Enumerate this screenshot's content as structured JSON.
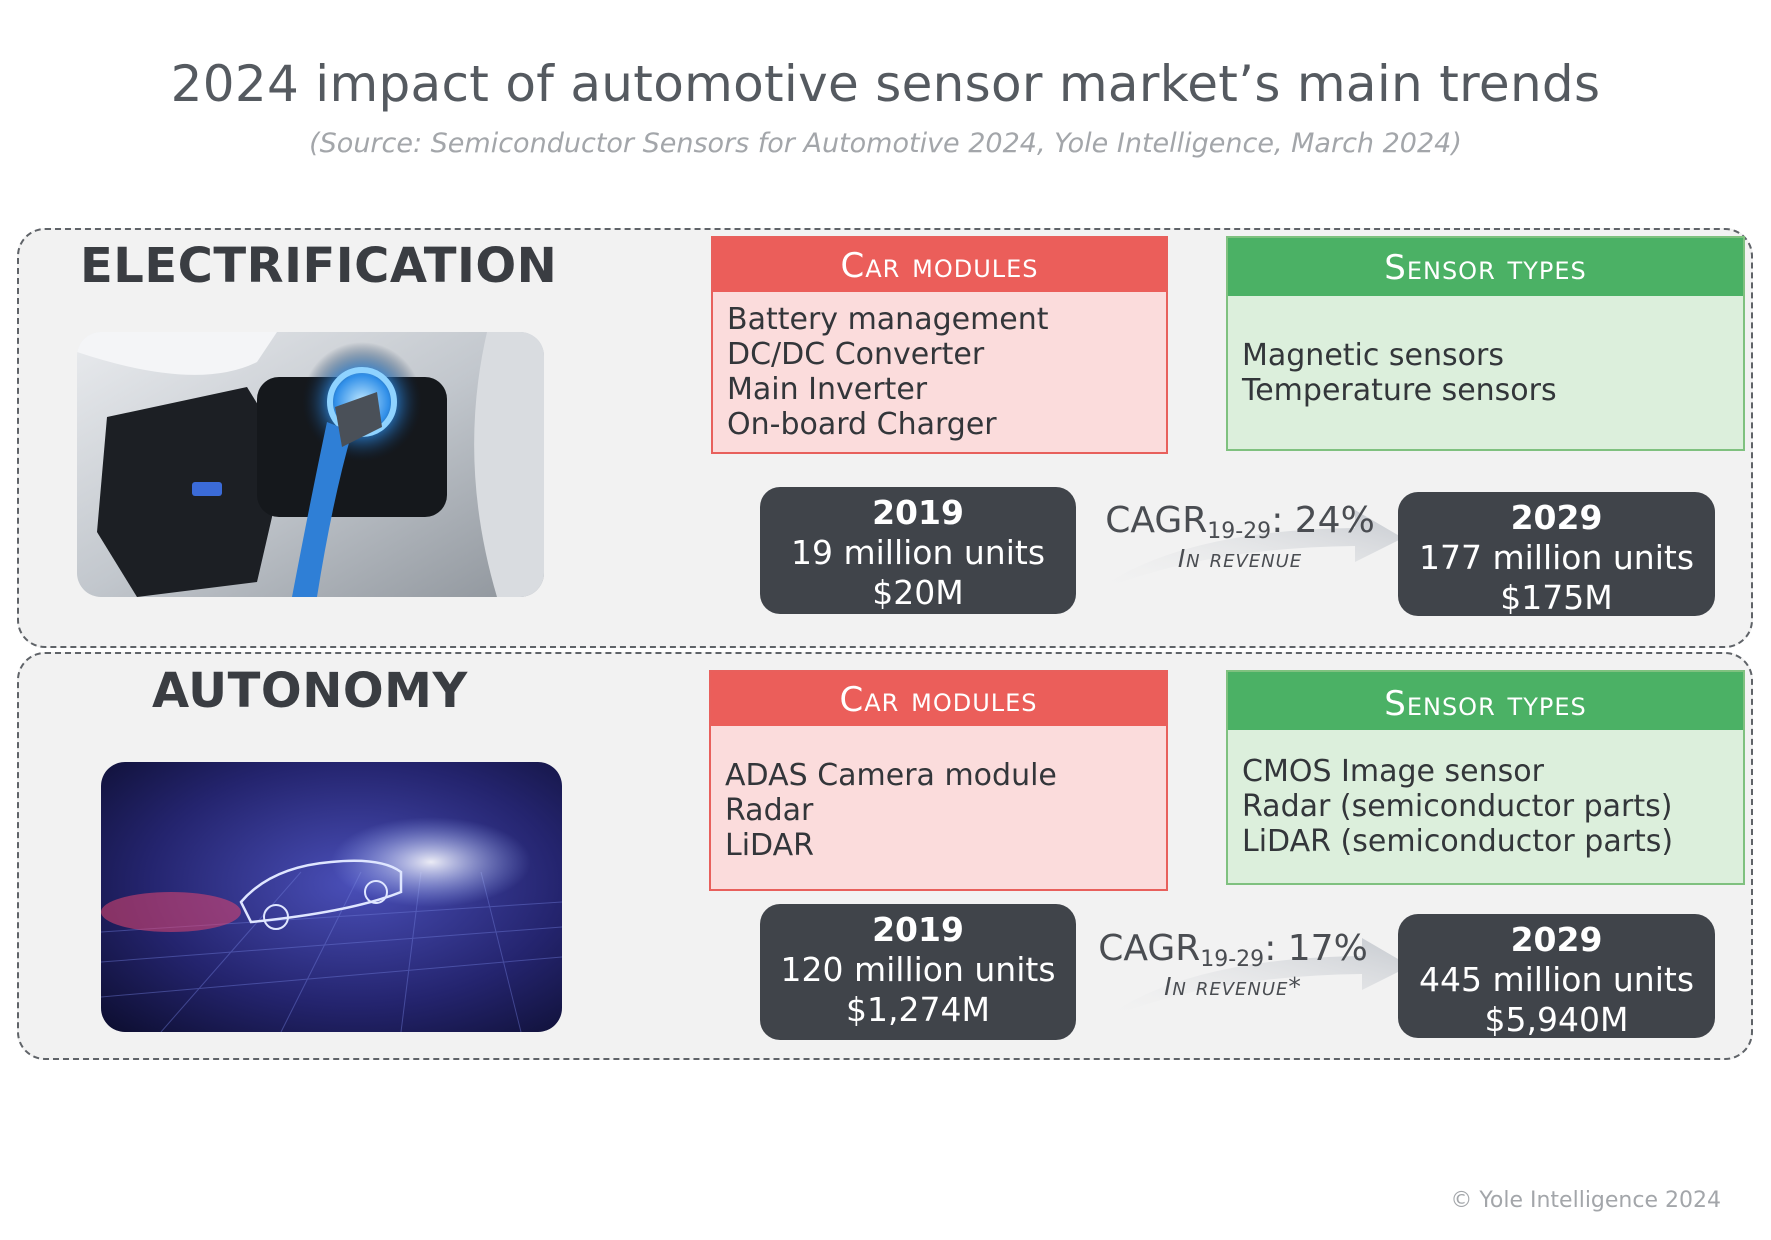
{
  "header": {
    "title": "2024 impact of automotive sensor market’s main trends",
    "subtitle": "(Source: Semiconductor Sensors for Automotive 2024, Yole Intelligence, March 2024)"
  },
  "electrification": {
    "title": "ELECTRIFICATION",
    "car_modules": {
      "heading": "Car modules",
      "items": [
        "Battery management",
        "DC/DC Converter",
        "Main Inverter",
        "On-board Charger"
      ]
    },
    "sensor_types": {
      "heading": "Sensor types",
      "items": [
        "Magnetic sensors",
        "Temperature sensors"
      ]
    },
    "start": {
      "year": "2019",
      "units": "19 million units",
      "revenue": "$20M"
    },
    "cagr": {
      "prefix": "CAGR",
      "sub": "19-29",
      "value": ": 24%",
      "label": "In revenue"
    },
    "end": {
      "year": "2029",
      "units": "177 million units",
      "revenue": "$175M"
    }
  },
  "autonomy": {
    "title": "AUTONOMY",
    "car_modules": {
      "heading": "Car modules",
      "items": [
        "ADAS Camera module",
        "Radar",
        "LiDAR"
      ]
    },
    "sensor_types": {
      "heading": "Sensor types",
      "items": [
        "CMOS Image sensor",
        "Radar (semiconductor parts)",
        "LiDAR (semiconductor parts)"
      ]
    },
    "start": {
      "year": "2019",
      "units": "120 million units",
      "revenue": "$1,274M"
    },
    "cagr": {
      "prefix": "CAGR",
      "sub": "19-29",
      "value": ": 17%",
      "label": "In revenue*"
    },
    "end": {
      "year": "2029",
      "units": "445 million units",
      "revenue": "$5,940M"
    }
  },
  "footer": {
    "copyright": "© Yole Intelligence 2024"
  },
  "colors": {
    "red": "#eb5e5a",
    "green": "#4bb165",
    "dark": "#40444a"
  }
}
